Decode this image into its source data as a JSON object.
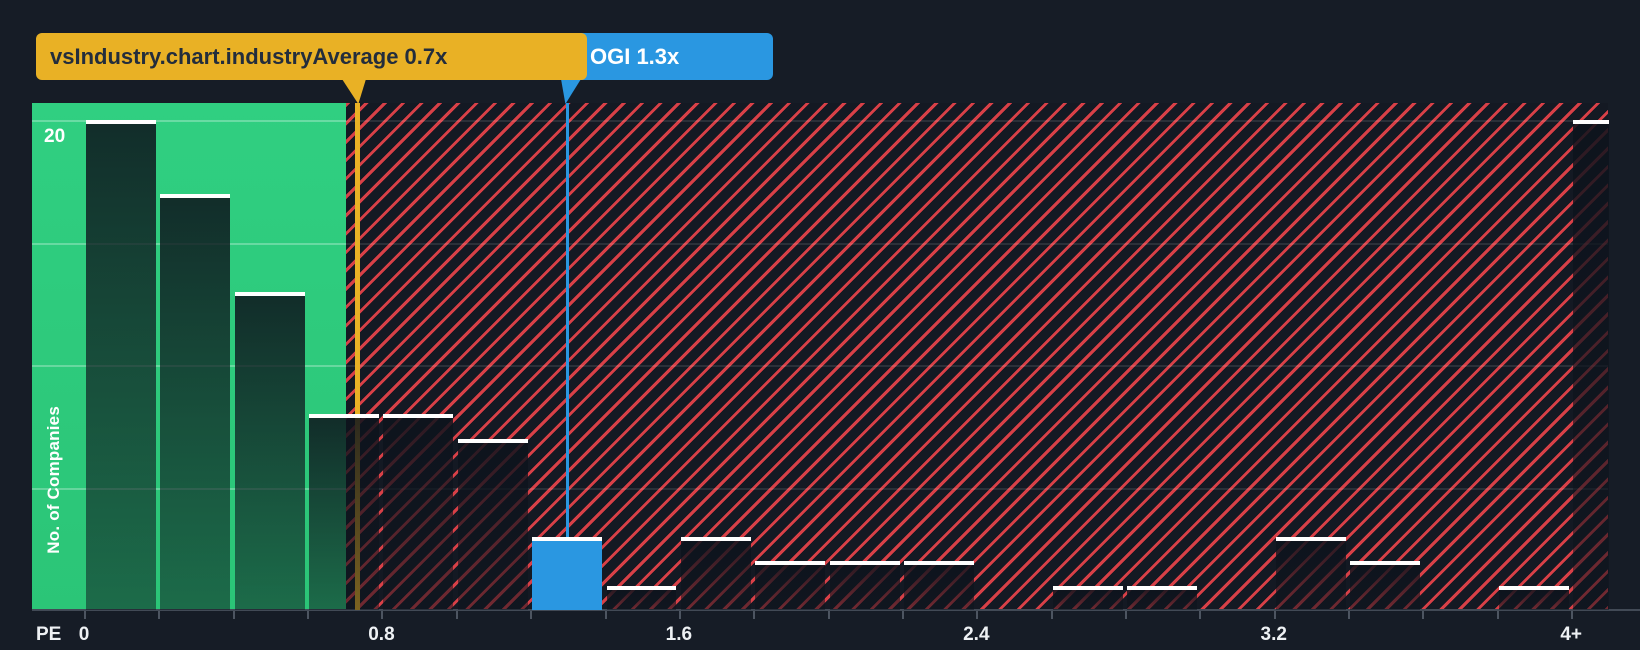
{
  "page": {
    "background": "#161c26"
  },
  "callouts": {
    "industry": {
      "label": "vsIndustry.chart.industryAverage 0.7x",
      "value": 0.7,
      "color": "#e9b125",
      "text_color": "#232d3c"
    },
    "company": {
      "label": "OGI 1.3x",
      "value": 1.3,
      "color": "#2a97e1",
      "text_color": "#ffffff"
    }
  },
  "chart_data": {
    "type": "bar",
    "kind": "histogram",
    "title": "",
    "x_axis_title": "PE",
    "y_axis_title": "No. of Companies",
    "bin_width": 0.2,
    "xlim": [
      0,
      4.2
    ],
    "ylim": [
      0,
      20.7
    ],
    "grid": "on",
    "legend": "none",
    "y_gridlines": [
      5,
      10,
      15,
      20
    ],
    "y_labeled_gridline": {
      "value": 20,
      "label": "20"
    },
    "x_ticks": [
      {
        "value": 0.0,
        "label": "0"
      },
      {
        "value": 0.8,
        "label": "0.8"
      },
      {
        "value": 1.6,
        "label": "1.6"
      },
      {
        "value": 2.4,
        "label": "2.4"
      },
      {
        "value": 3.2,
        "label": "3.2"
      },
      {
        "value": 4.0,
        "label": "4+"
      }
    ],
    "tick_step": 0.2,
    "bins": [
      {
        "start": 0.0,
        "count": 20
      },
      {
        "start": 0.2,
        "count": 17
      },
      {
        "start": 0.4,
        "count": 13
      },
      {
        "start": 0.6,
        "count": 8
      },
      {
        "start": 0.8,
        "count": 8
      },
      {
        "start": 1.0,
        "count": 7
      },
      {
        "start": 1.2,
        "count": 3,
        "highlight": "company"
      },
      {
        "start": 1.4,
        "count": 1
      },
      {
        "start": 1.6,
        "count": 3
      },
      {
        "start": 1.8,
        "count": 2
      },
      {
        "start": 2.0,
        "count": 2
      },
      {
        "start": 2.2,
        "count": 2
      },
      {
        "start": 2.4,
        "count": 0
      },
      {
        "start": 2.6,
        "count": 1
      },
      {
        "start": 2.8,
        "count": 1
      },
      {
        "start": 3.0,
        "count": 0
      },
      {
        "start": 3.2,
        "count": 3
      },
      {
        "start": 3.4,
        "count": 2
      },
      {
        "start": 3.6,
        "count": 0
      },
      {
        "start": 3.8,
        "count": 1
      }
    ],
    "overflow_bin": {
      "label": "4+",
      "count": 20
    },
    "markers": {
      "industry_average": 0.7,
      "company": 1.3
    },
    "zones": {
      "below_average_color": "#2dc97c",
      "above_average_stripe_color": "#e9434a",
      "above_average_background": "#141923"
    },
    "bar_cap_color": "#ffffff",
    "company_bar_color": "#2a97e1"
  }
}
